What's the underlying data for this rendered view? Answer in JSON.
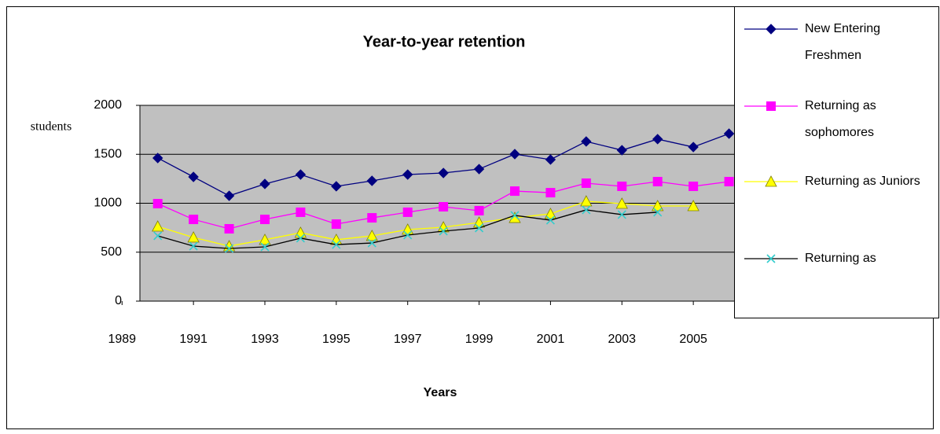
{
  "chart_data": {
    "type": "line",
    "title": "Year-to-year retention",
    "x_label": "Years",
    "y_label": "students",
    "x": [
      1990,
      1991,
      1992,
      1993,
      1994,
      1995,
      1996,
      1997,
      1998,
      1999,
      2000,
      2001,
      2002,
      2003,
      2004,
      2005,
      2006
    ],
    "series": [
      {
        "name": "New Entering Freshmen",
        "color": "#000080",
        "marker": "diamond",
        "marker_color": "#000080",
        "values": [
          1462,
          1269,
          1076,
          1197,
          1293,
          1173,
          1229,
          1293,
          1309,
          1349,
          1502,
          1446,
          1631,
          1542,
          1655,
          1574,
          1711
        ]
      },
      {
        "name": "Returning as sophomores",
        "color": "#ff00ff",
        "marker": "square",
        "marker_color": "#ff00ff",
        "values": [
          996,
          835,
          739,
          835,
          908,
          787,
          851,
          908,
          964,
          924,
          1124,
          1108,
          1205,
          1173,
          1221,
          1173,
          1221
        ]
      },
      {
        "name": "Returning as Juniors",
        "color": "#ffff00",
        "marker": "triangle",
        "marker_color": "#ffff00",
        "values": [
          763,
          651,
          562,
          627,
          699,
          627,
          667,
          731,
          755,
          803,
          851,
          892,
          1020,
          996,
          972,
          972,
          null
        ]
      },
      {
        "name": "Returning as",
        "color": "#000000",
        "marker": "x",
        "marker_color": "#33cccc",
        "values": [
          667,
          562,
          538,
          554,
          643,
          578,
          594,
          675,
          715,
          747,
          876,
          827,
          932,
          884,
          908,
          null,
          null
        ]
      }
    ],
    "xlim": [
      1989.5,
      2007
    ],
    "xticks": [
      1989,
      1991,
      1993,
      1995,
      1997,
      1999,
      2001,
      2003,
      2005
    ],
    "ylim": [
      0,
      2000
    ],
    "yticks": [
      0,
      500,
      1000,
      1500,
      2000
    ],
    "grid": true,
    "plot_background": "#c0c0c0",
    "legend": "right"
  }
}
